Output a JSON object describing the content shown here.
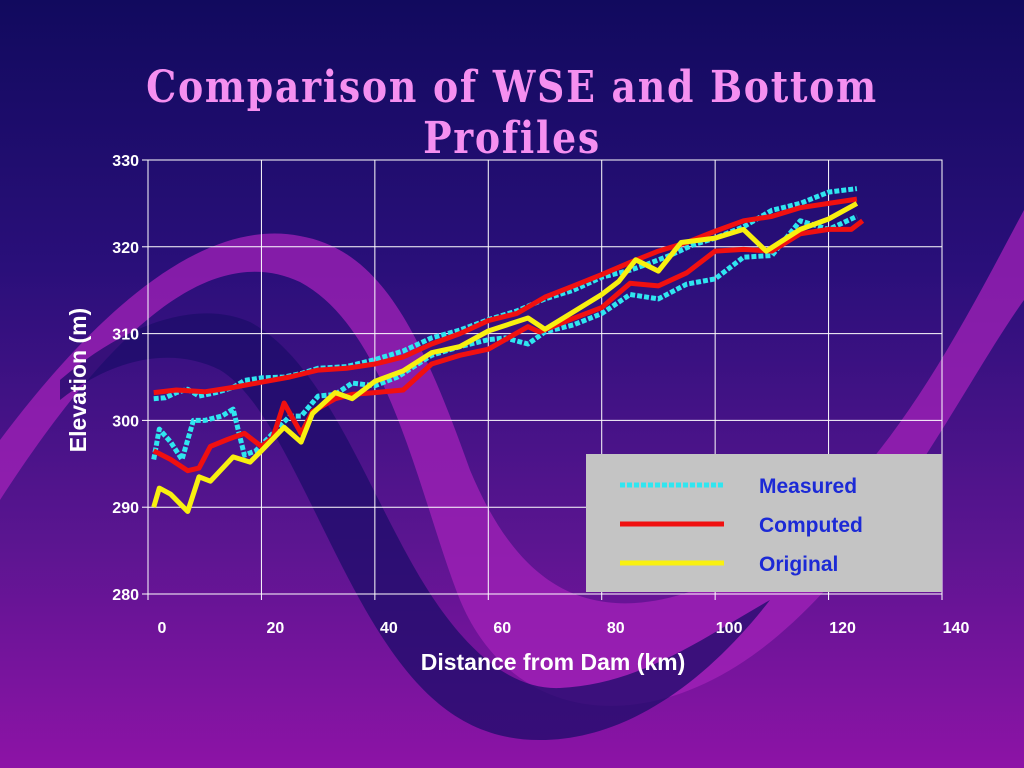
{
  "slide": {
    "title": "Comparison of WSE and Bottom Profiles"
  },
  "chart_data": {
    "type": "line",
    "title": "",
    "xlabel": "Distance from Dam (km)",
    "ylabel": "Elevation (m)",
    "xlim": [
      0,
      140
    ],
    "ylim": [
      280,
      330
    ],
    "x_ticks": [
      0,
      20,
      40,
      60,
      80,
      100,
      120,
      140
    ],
    "y_ticks": [
      280,
      290,
      300,
      310,
      320,
      330
    ],
    "grid": true,
    "legend_position": "bottom-right",
    "series": [
      {
        "name": "Measured",
        "color": "#2fe6f0",
        "style": "dashed",
        "lines": [
          [
            [
              1,
              302.5
            ],
            [
              3,
              302.6
            ],
            [
              5,
              303.2
            ],
            [
              7,
              303.6
            ],
            [
              9,
              302.8
            ],
            [
              12,
              303.2
            ],
            [
              15,
              303.8
            ],
            [
              17,
              304.6
            ],
            [
              20,
              304.9
            ],
            [
              24,
              305.0
            ],
            [
              27,
              305.4
            ],
            [
              30,
              306.0
            ],
            [
              35,
              306.2
            ],
            [
              40,
              307.0
            ],
            [
              45,
              308.0
            ],
            [
              50,
              309.5
            ],
            [
              55,
              310.4
            ],
            [
              60,
              311.6
            ],
            [
              65,
              312.6
            ],
            [
              70,
              314.0
            ],
            [
              75,
              315.0
            ],
            [
              80,
              316.5
            ],
            [
              85,
              317.3
            ],
            [
              88,
              318.0
            ],
            [
              92,
              319.0
            ],
            [
              96,
              320.2
            ],
            [
              100,
              321.0
            ],
            [
              105,
              322.3
            ],
            [
              110,
              324.2
            ],
            [
              115,
              325.0
            ],
            [
              120,
              326.3
            ],
            [
              125,
              326.7
            ]
          ],
          [
            [
              1,
              295.5
            ],
            [
              2,
              299.0
            ],
            [
              4,
              297.5
            ],
            [
              6,
              295.5
            ],
            [
              8,
              300.0
            ],
            [
              10,
              300.0
            ],
            [
              13,
              300.5
            ],
            [
              15,
              301.3
            ],
            [
              17,
              296.0
            ],
            [
              19,
              296.5
            ],
            [
              22,
              298.5
            ],
            [
              25,
              300.5
            ],
            [
              27,
              300.5
            ],
            [
              30,
              302.8
            ],
            [
              33,
              303.0
            ],
            [
              36,
              304.3
            ],
            [
              40,
              304.0
            ],
            [
              44,
              305.0
            ],
            [
              50,
              307.5
            ],
            [
              55,
              308.5
            ],
            [
              60,
              309.3
            ],
            [
              63,
              309.5
            ],
            [
              67,
              308.8
            ],
            [
              70,
              310.2
            ],
            [
              75,
              311.0
            ],
            [
              80,
              312.3
            ],
            [
              85,
              314.5
            ],
            [
              90,
              314.0
            ],
            [
              95,
              315.7
            ],
            [
              100,
              316.3
            ],
            [
              105,
              318.8
            ],
            [
              110,
              319.0
            ],
            [
              115,
              323.0
            ],
            [
              120,
              322.0
            ],
            [
              125,
              323.5
            ]
          ]
        ]
      },
      {
        "name": "Computed",
        "color": "#f01010",
        "style": "solid",
        "lines": [
          [
            [
              1,
              303.2
            ],
            [
              5,
              303.5
            ],
            [
              10,
              303.3
            ],
            [
              15,
              303.8
            ],
            [
              20,
              304.4
            ],
            [
              25,
              305.0
            ],
            [
              30,
              305.8
            ],
            [
              35,
              306.0
            ],
            [
              40,
              306.5
            ],
            [
              45,
              307.3
            ],
            [
              50,
              308.8
            ],
            [
              55,
              310.0
            ],
            [
              60,
              311.5
            ],
            [
              65,
              312.3
            ],
            [
              70,
              314.2
            ],
            [
              75,
              315.5
            ],
            [
              80,
              316.8
            ],
            [
              85,
              318.2
            ],
            [
              90,
              319.5
            ],
            [
              95,
              320.5
            ],
            [
              100,
              321.8
            ],
            [
              105,
              323.0
            ],
            [
              110,
              323.5
            ],
            [
              115,
              324.5
            ],
            [
              120,
              325.0
            ],
            [
              125,
              325.5
            ]
          ],
          [
            [
              1,
              296.5
            ],
            [
              4,
              295.5
            ],
            [
              7,
              294.2
            ],
            [
              9,
              294.5
            ],
            [
              11,
              297.0
            ],
            [
              14,
              297.8
            ],
            [
              17,
              298.5
            ],
            [
              20,
              297.0
            ],
            [
              22,
              298.0
            ],
            [
              24,
              302.0
            ],
            [
              27,
              298.5
            ],
            [
              29,
              301.0
            ],
            [
              33,
              302.5
            ],
            [
              36,
              303.0
            ],
            [
              40,
              303.2
            ],
            [
              45,
              303.5
            ],
            [
              50,
              306.5
            ],
            [
              55,
              307.5
            ],
            [
              60,
              308.2
            ],
            [
              67,
              310.8
            ],
            [
              69,
              310.2
            ],
            [
              74,
              311.5
            ],
            [
              80,
              313.0
            ],
            [
              85,
              315.8
            ],
            [
              90,
              315.5
            ],
            [
              95,
              317.0
            ],
            [
              100,
              319.5
            ],
            [
              105,
              319.7
            ],
            [
              110,
              319.5
            ],
            [
              115,
              321.5
            ],
            [
              120,
              322.0
            ],
            [
              124,
              322.0
            ],
            [
              126,
              323.0
            ]
          ]
        ]
      },
      {
        "name": "Original",
        "color": "#f8f010",
        "style": "solid",
        "lines": [
          [
            [
              1,
              290.0
            ],
            [
              2,
              292.2
            ],
            [
              4,
              291.5
            ],
            [
              7,
              289.5
            ],
            [
              9,
              293.5
            ],
            [
              11,
              293.0
            ],
            [
              15,
              295.8
            ],
            [
              18,
              295.2
            ],
            [
              20,
              296.5
            ],
            [
              24,
              299.2
            ],
            [
              27,
              297.5
            ],
            [
              29,
              300.8
            ],
            [
              33,
              303.2
            ],
            [
              36,
              302.5
            ],
            [
              40,
              304.5
            ],
            [
              45,
              305.7
            ],
            [
              50,
              307.8
            ],
            [
              55,
              308.5
            ],
            [
              60,
              310.3
            ],
            [
              67,
              311.8
            ],
            [
              70,
              310.5
            ],
            [
              75,
              312.5
            ],
            [
              80,
              314.5
            ],
            [
              83,
              316.0
            ],
            [
              86,
              318.5
            ],
            [
              90,
              317.2
            ],
            [
              94,
              320.5
            ],
            [
              100,
              321.0
            ],
            [
              105,
              322.0
            ],
            [
              109,
              319.5
            ],
            [
              115,
              322.0
            ],
            [
              120,
              323.2
            ],
            [
              125,
              325.0
            ]
          ]
        ]
      }
    ]
  }
}
